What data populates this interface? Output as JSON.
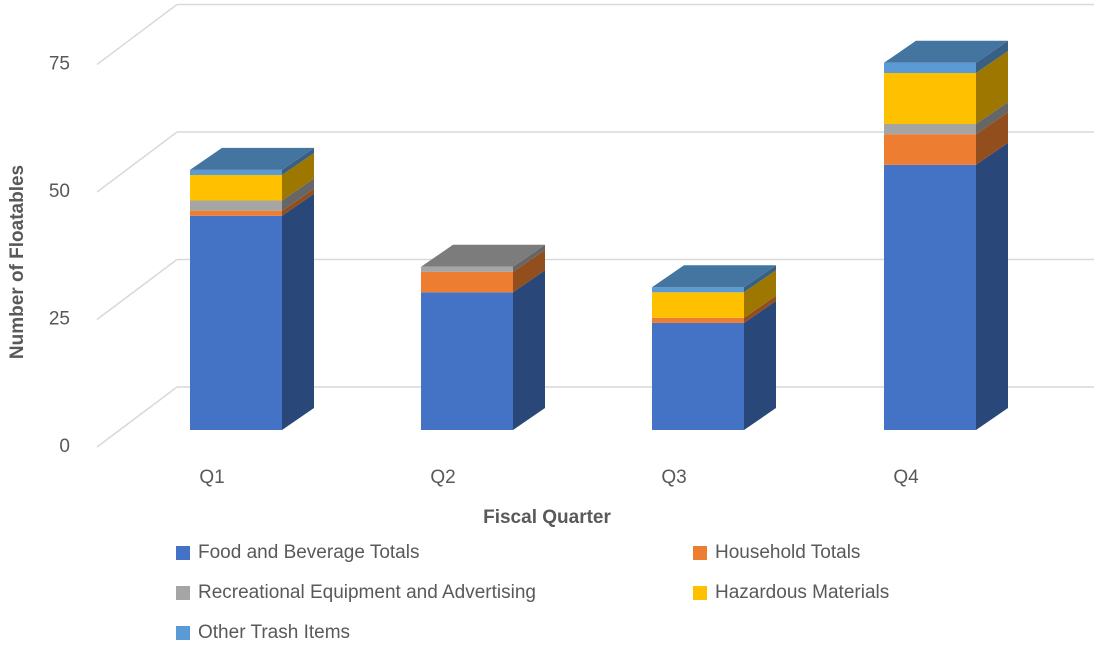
{
  "chart_data": {
    "type": "bar3d_stacked",
    "y_label": "Number of Floatables",
    "x_label": "Fiscal Quarter",
    "categories": [
      "Q1",
      "Q2",
      "Q3",
      "Q4"
    ],
    "series": [
      {
        "name": "Food and Beverage Totals",
        "color": "#4472c4",
        "values": [
          42,
          27,
          21,
          52
        ]
      },
      {
        "name": "Household Totals",
        "color": "#ed7d31",
        "values": [
          1,
          4,
          1,
          6
        ]
      },
      {
        "name": "Recreational Equipment and Advertising",
        "color": "#a5a5a5",
        "values": [
          2,
          1,
          0,
          2
        ]
      },
      {
        "name": "Hazardous Materials",
        "color": "#ffc000",
        "values": [
          5,
          0,
          5,
          10
        ]
      },
      {
        "name": "Other Trash Items",
        "color": "#5b9bd5",
        "values": [
          1,
          0,
          1,
          2
        ]
      }
    ],
    "ylim": [
      0,
      75
    ],
    "yticks": [
      0,
      25,
      50,
      75
    ],
    "grid": true
  }
}
